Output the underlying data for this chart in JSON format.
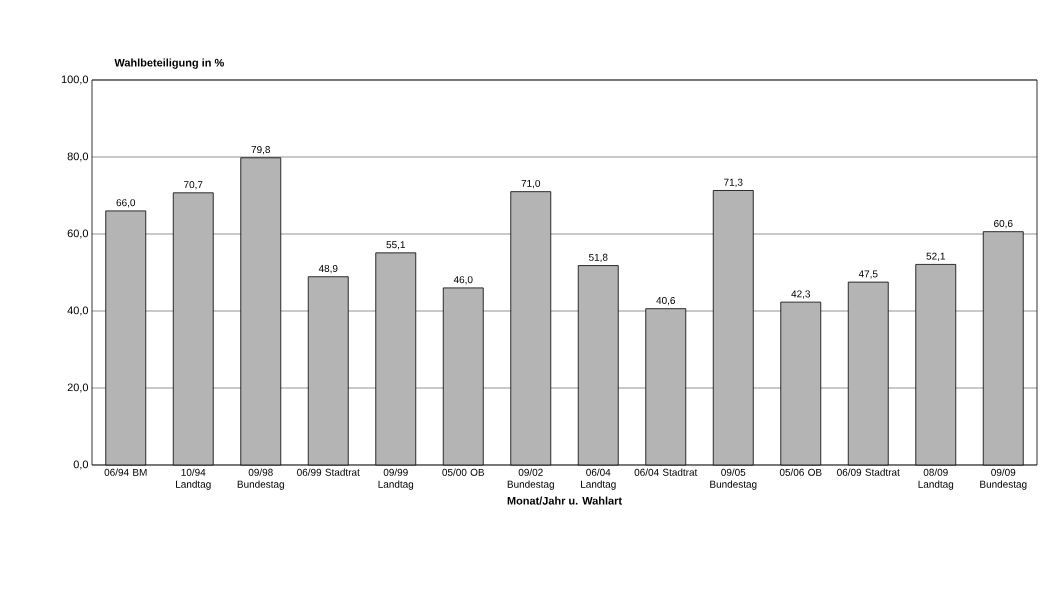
{
  "chart_data": {
    "type": "bar",
    "ylabel": "Wahlbeteiligung in %",
    "xlabel": "Monat/Jahr u. Wahlart",
    "categories": [
      "06/94 BM",
      "10/94 Landtag",
      "09/98 Bundestag",
      "06/99 Stadtrat",
      "09/99 Landtag",
      "05/00 OB",
      "09/02 Bundestag",
      "06/04 Landtag",
      "06/04 Stadtrat",
      "09/05 Bundestag",
      "05/06 OB",
      "06/09 Stadtrat",
      "08/09 Landtag",
      "09/09 Bundestag"
    ],
    "values": [
      66.0,
      70.7,
      79.8,
      48.9,
      55.1,
      46.0,
      71.0,
      51.8,
      40.6,
      71.3,
      42.3,
      47.5,
      52.1,
      60.6
    ],
    "value_labels": [
      "66,0",
      "70,7",
      "79,8",
      "48,9",
      "55,1",
      "46,0",
      "71,0",
      "51,8",
      "40,6",
      "71,3",
      "42,3",
      "47,5",
      "52,1",
      "60,6"
    ],
    "color": "#b4b4b4",
    "ylim": [
      0,
      100
    ],
    "yticks": [
      {
        "value": 0,
        "label": "0,0"
      },
      {
        "value": 20,
        "label": "20,0"
      },
      {
        "value": 40,
        "label": "40,0"
      },
      {
        "value": 60,
        "label": "60,0"
      },
      {
        "value": 80,
        "label": "80,0"
      },
      {
        "value": 100,
        "label": "100,0"
      }
    ],
    "grid": "y"
  }
}
